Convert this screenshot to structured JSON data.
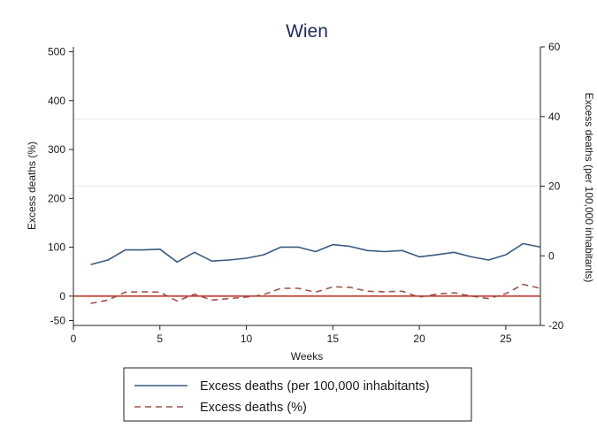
{
  "chart_data": {
    "type": "line",
    "title": "Wien",
    "xlabel": "Weeks",
    "ylabel_left": "Excess deaths (%)",
    "ylabel_right": "Excess deaths (per 100,000 inhabitants)",
    "xlim": [
      0,
      27
    ],
    "ylim_left": [
      -60,
      510
    ],
    "ylim_right": [
      -20,
      60
    ],
    "x_ticks": [
      0,
      5,
      10,
      15,
      20,
      25
    ],
    "y_ticks_left": [
      -50,
      0,
      100,
      200,
      300,
      400,
      500
    ],
    "y_ticks_right": [
      -20,
      0,
      20,
      40,
      60
    ],
    "gridlines_left": [
      225,
      362
    ],
    "reference_line_left": 0,
    "reference_line_color": "#c0392b",
    "legend_position": "bottom",
    "x": [
      1,
      2,
      3,
      4,
      5,
      6,
      7,
      8,
      9,
      10,
      11,
      12,
      13,
      14,
      15,
      16,
      17,
      18,
      19,
      20,
      21,
      22,
      23,
      24,
      25,
      26,
      27
    ],
    "series": [
      {
        "name": "Excess deaths (per 100,000 inhabitants)",
        "axis": "right",
        "style": "solid",
        "color": "#3b5a80",
        "values": [
          -2.5,
          -1.2,
          1.7,
          1.7,
          1.9,
          -1.8,
          1.0,
          -1.5,
          -1.2,
          -0.7,
          0.3,
          2.5,
          2.5,
          1.2,
          3.2,
          2.7,
          1.5,
          1.2,
          1.5,
          -0.3,
          0.3,
          1.0,
          -0.3,
          -1.2,
          0.3,
          3.5,
          2.5
        ]
      },
      {
        "name": "Excess deaths (%)",
        "axis": "left",
        "style": "dashed",
        "color": "#a0524c",
        "values": [
          -15,
          -8,
          8,
          9,
          8,
          -10,
          4,
          -8,
          -5,
          -2,
          3,
          16,
          16,
          8,
          19,
          18,
          10,
          9,
          10,
          -2,
          4,
          7,
          0,
          -5,
          5,
          24,
          16
        ]
      }
    ]
  }
}
